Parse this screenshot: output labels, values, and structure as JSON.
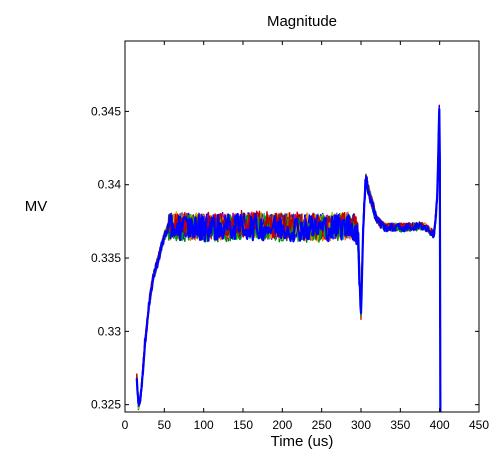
{
  "chart_data": {
    "type": "line",
    "title": "Magnitude",
    "xlabel": "Time (us)",
    "ylabel": "MV",
    "xlim": [
      0,
      450
    ],
    "ylim": [
      0.3245,
      0.3498
    ],
    "xticks": [
      0,
      50,
      100,
      150,
      200,
      250,
      300,
      350,
      400,
      450
    ],
    "yticks": [
      0.325,
      0.33,
      0.335,
      0.34,
      0.345
    ],
    "ytick_labels": [
      "0.325",
      "0.33",
      "0.335",
      "0.34",
      "0.345"
    ],
    "grid": false,
    "legend": "none",
    "series_count": 12,
    "series_colors": [
      "#0000ff",
      "#008000",
      "#ff0000",
      "#00bfbf",
      "#bf00bf",
      "#bfbf00",
      "#404040",
      "#ff8000",
      "#0000ff",
      "#00a000",
      "#c00000",
      "#0000ff"
    ],
    "envelope": {
      "x": [
        15,
        17,
        20,
        25,
        30,
        35,
        40,
        45,
        50,
        55,
        60,
        100,
        150,
        200,
        250,
        290,
        296,
        300,
        303,
        306,
        310,
        320,
        330,
        340,
        360,
        380,
        393,
        397,
        400,
        401
      ],
      "center": [
        0.3268,
        0.325,
        0.3255,
        0.329,
        0.3315,
        0.3335,
        0.3345,
        0.3355,
        0.3365,
        0.3371,
        0.3372,
        0.3371,
        0.3372,
        0.3371,
        0.3371,
        0.3372,
        0.3366,
        0.3312,
        0.3375,
        0.3405,
        0.3395,
        0.3376,
        0.3371,
        0.3371,
        0.3371,
        0.3372,
        0.3366,
        0.3392,
        0.3465,
        0.324
      ]
    },
    "noise_amplitude": 0.0009
  }
}
